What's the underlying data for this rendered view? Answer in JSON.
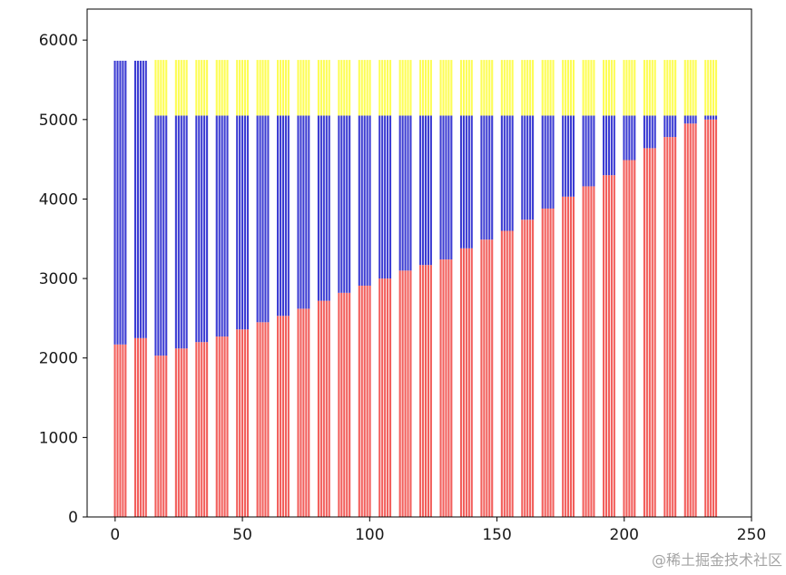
{
  "watermark": {
    "text": "@稀土掘金技术社区",
    "color": "#949494"
  },
  "chart_data": {
    "type": "bar",
    "subtype": "stacked-grouped-thin-bars",
    "title": "",
    "xlabel": "",
    "ylabel": "",
    "xlim": [
      -11,
      250
    ],
    "ylim": [
      0,
      6390
    ],
    "x_ticks": [
      0,
      50,
      100,
      150,
      200,
      250
    ],
    "y_ticks": [
      0,
      1000,
      2000,
      3000,
      4000,
      5000,
      6000
    ],
    "grid": false,
    "legend": false,
    "bars_per_group": 5,
    "bar_pitch": 1.05,
    "bar_width": 0.75,
    "series_colors": {
      "red": "#f25f5c",
      "blue": "#3c3cd2",
      "yellow": "#fdfd55"
    },
    "axis_color": "#000000",
    "background": "#ffffff",
    "series_order": [
      "red",
      "blue",
      "yellow"
    ],
    "groups": [
      {
        "x": 2,
        "red": 2170,
        "blue_top": 5740,
        "yellow_top": null
      },
      {
        "x": 10,
        "red": 2250,
        "blue_top": 5740,
        "yellow_top": null
      },
      {
        "x": 18,
        "red": 2030,
        "blue_top": 5050,
        "yellow_top": 5750
      },
      {
        "x": 26,
        "red": 2120,
        "blue_top": 5050,
        "yellow_top": 5750
      },
      {
        "x": 34,
        "red": 2200,
        "blue_top": 5050,
        "yellow_top": 5750
      },
      {
        "x": 42,
        "red": 2270,
        "blue_top": 5050,
        "yellow_top": 5750
      },
      {
        "x": 50,
        "red": 2360,
        "blue_top": 5050,
        "yellow_top": 5750
      },
      {
        "x": 58,
        "red": 2450,
        "blue_top": 5050,
        "yellow_top": 5750
      },
      {
        "x": 66,
        "red": 2530,
        "blue_top": 5050,
        "yellow_top": 5750
      },
      {
        "x": 74,
        "red": 2620,
        "blue_top": 5050,
        "yellow_top": 5750
      },
      {
        "x": 82,
        "red": 2720,
        "blue_top": 5050,
        "yellow_top": 5750
      },
      {
        "x": 90,
        "red": 2820,
        "blue_top": 5050,
        "yellow_top": 5750
      },
      {
        "x": 98,
        "red": 2910,
        "blue_top": 5050,
        "yellow_top": 5750
      },
      {
        "x": 106,
        "red": 3000,
        "blue_top": 5050,
        "yellow_top": 5750
      },
      {
        "x": 114,
        "red": 3100,
        "blue_top": 5050,
        "yellow_top": 5750
      },
      {
        "x": 122,
        "red": 3170,
        "blue_top": 5050,
        "yellow_top": 5750
      },
      {
        "x": 130,
        "red": 3240,
        "blue_top": 5050,
        "yellow_top": 5750
      },
      {
        "x": 138,
        "red": 3380,
        "blue_top": 5050,
        "yellow_top": 5750
      },
      {
        "x": 146,
        "red": 3490,
        "blue_top": 5050,
        "yellow_top": 5750
      },
      {
        "x": 154,
        "red": 3600,
        "blue_top": 5050,
        "yellow_top": 5750
      },
      {
        "x": 162,
        "red": 3740,
        "blue_top": 5050,
        "yellow_top": 5750
      },
      {
        "x": 170,
        "red": 3880,
        "blue_top": 5050,
        "yellow_top": 5750
      },
      {
        "x": 178,
        "red": 4030,
        "blue_top": 5050,
        "yellow_top": 5750
      },
      {
        "x": 186,
        "red": 4160,
        "blue_top": 5050,
        "yellow_top": 5750
      },
      {
        "x": 194,
        "red": 4300,
        "blue_top": 5050,
        "yellow_top": 5750
      },
      {
        "x": 202,
        "red": 4490,
        "blue_top": 5050,
        "yellow_top": 5750
      },
      {
        "x": 210,
        "red": 4640,
        "blue_top": 5050,
        "yellow_top": 5750
      },
      {
        "x": 218,
        "red": 4780,
        "blue_top": 5050,
        "yellow_top": 5750
      },
      {
        "x": 226,
        "red": 4950,
        "blue_top": 5050,
        "yellow_top": 5750
      },
      {
        "x": 234,
        "red": 5000,
        "blue_top": 5050,
        "yellow_top": 5750
      }
    ]
  }
}
